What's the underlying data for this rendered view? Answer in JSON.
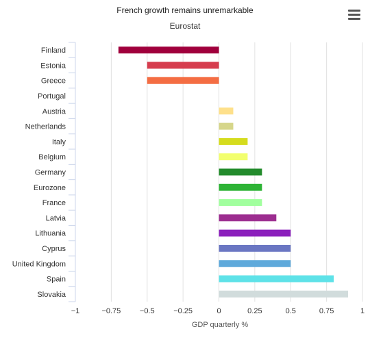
{
  "chart_data": {
    "type": "bar",
    "orientation": "horizontal",
    "title": "French growth remains unremarkable",
    "subtitle": "Eurostat",
    "xlabel": "GDP quarterly %",
    "xlim": [
      -1,
      1
    ],
    "xticks": [
      "−1",
      "−0.75",
      "−0.5",
      "−0.25",
      "0",
      "0.25",
      "0.5",
      "0.75",
      "1"
    ],
    "xtick_values": [
      -1,
      -0.75,
      -0.5,
      -0.25,
      0,
      0.25,
      0.5,
      0.75,
      1
    ],
    "grid": true,
    "legend": "none",
    "categories": [
      "Finland",
      "Estonia",
      "Greece",
      "Portugal",
      "Austria",
      "Netherlands",
      "Italy",
      "Belgium",
      "Germany",
      "Eurozone",
      "France",
      "Latvia",
      "Lithuania",
      "Cyprus",
      "United Kingdom",
      "Spain",
      "Slovakia"
    ],
    "values": [
      -0.7,
      -0.5,
      -0.5,
      0,
      0.1,
      0.1,
      0.2,
      0.2,
      0.3,
      0.3,
      0.3,
      0.4,
      0.5,
      0.5,
      0.5,
      0.8,
      0.9
    ],
    "colors": [
      "#a0003c",
      "#d63d4e",
      "#f46d43",
      "#fdae61",
      "#fee08b",
      "#d6d68a",
      "#d5dc1e",
      "#f2ff6f",
      "#238b2c",
      "#2db335",
      "#a1ff9e",
      "#9c2d8f",
      "#8b1fbc",
      "#6a76c2",
      "#5ea9db",
      "#5ee2e8",
      "#d1dcdc"
    ]
  },
  "menu": {
    "icon": "hamburger-menu-icon"
  }
}
